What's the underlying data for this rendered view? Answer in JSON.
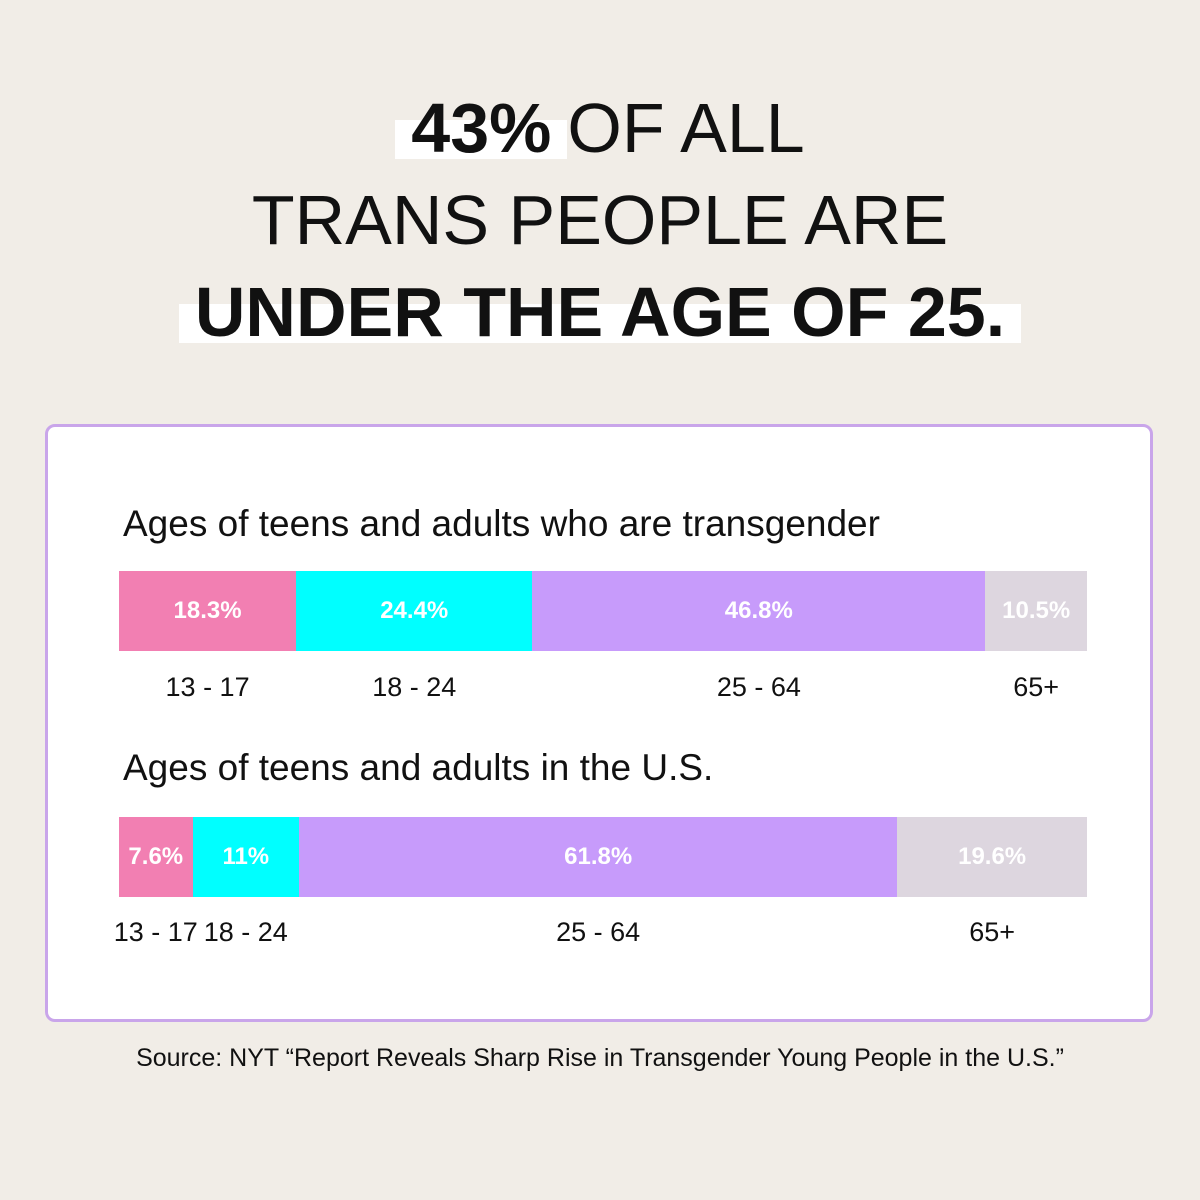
{
  "headline": {
    "line1_bold": "43%",
    "line1_rest": "OF ALL",
    "line2": "TRANS PEOPLE ARE",
    "line3": "UNDER THE AGE OF 25."
  },
  "chart_data": [
    {
      "type": "bar",
      "orientation": "horizontal",
      "stacked": true,
      "title": "Ages of teens and adults who are transgender",
      "categories": [
        "13 - 17",
        "18 - 24",
        "25 - 64",
        "65+"
      ],
      "values": [
        18.3,
        24.4,
        46.8,
        10.5
      ],
      "value_labels": [
        "18.3%",
        "24.4%",
        "46.8%",
        "10.5%"
      ],
      "colors": [
        "#f27fb2",
        "#00ffff",
        "#c79bfb",
        "#ddd6df"
      ]
    },
    {
      "type": "bar",
      "orientation": "horizontal",
      "stacked": true,
      "title": "Ages of teens and adults in the U.S.",
      "categories": [
        "13 - 17",
        "18 - 24",
        "25 - 64",
        "65+"
      ],
      "values": [
        7.6,
        11,
        61.8,
        19.6
      ],
      "value_labels": [
        "7.6%",
        "11%",
        "61.8%",
        "19.6%"
      ],
      "colors": [
        "#f27fb2",
        "#00ffff",
        "#c79bfb",
        "#ddd6df"
      ]
    }
  ],
  "source": "Source: NYT “Report Reveals Sharp Rise in Transgender Young People in the U.S.”"
}
